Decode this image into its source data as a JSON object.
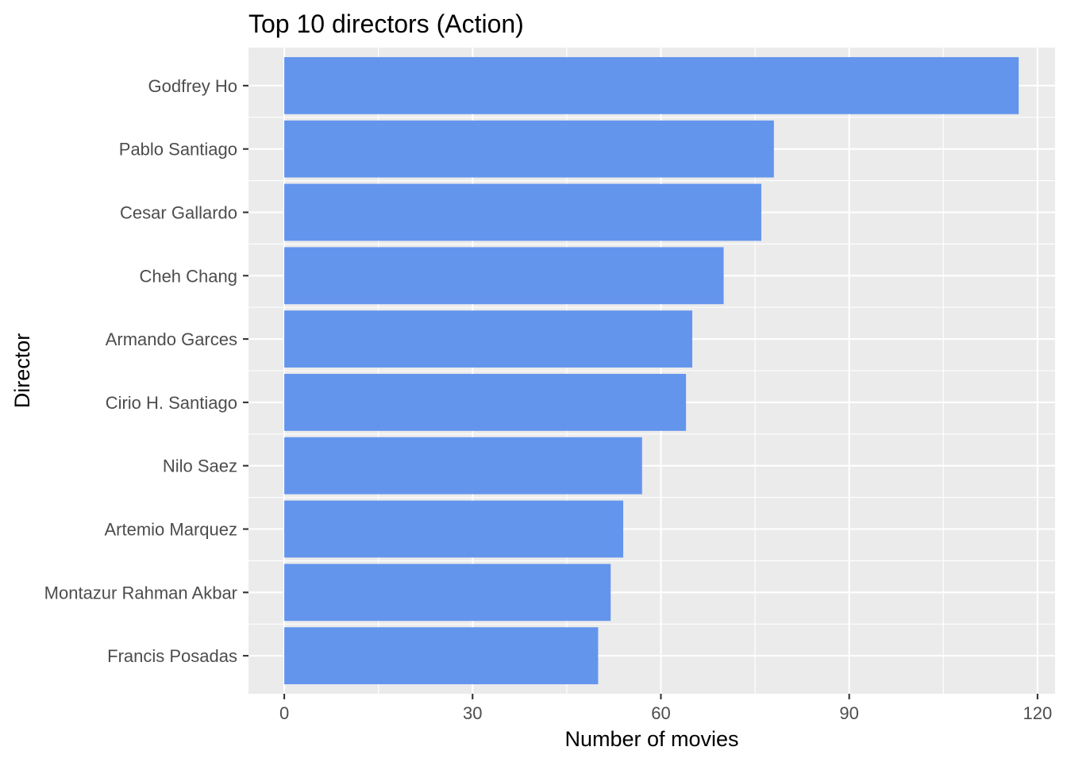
{
  "chart_data": {
    "type": "bar",
    "orientation": "horizontal",
    "title": "Top 10 directors (Action)",
    "xlabel": "Number of movies",
    "ylabel": "Director",
    "categories": [
      "Godfrey Ho",
      "Pablo Santiago",
      "Cesar Gallardo",
      "Cheh Chang",
      "Armando Garces",
      "Cirio H. Santiago",
      "Nilo Saez",
      "Artemio Marquez",
      "Montazur Rahman Akbar",
      "Francis Posadas"
    ],
    "values": [
      117,
      78,
      76,
      70,
      65,
      64,
      57,
      54,
      52,
      50
    ],
    "xlim": [
      -5.7,
      122.8
    ],
    "xticks": [
      0,
      30,
      60,
      90,
      120
    ],
    "grid": true,
    "legend": "none",
    "colors": {
      "bar": "#6495ED",
      "panel": "#EBEBEB",
      "grid_major": "#FFFFFF",
      "text": "#4D4D4D"
    }
  }
}
